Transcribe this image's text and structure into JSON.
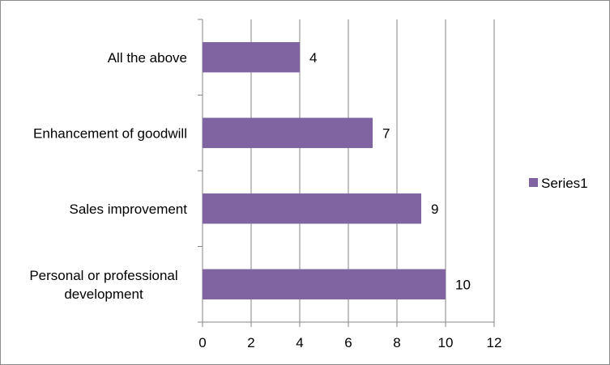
{
  "chart_data": {
    "type": "bar",
    "orientation": "horizontal",
    "categories": [
      "All the above",
      "Enhancement of goodwill",
      "Sales improvement",
      "Personal or professional development"
    ],
    "series": [
      {
        "name": "Series1",
        "values": [
          4,
          7,
          9,
          10
        ],
        "color": "#8064a2"
      }
    ],
    "xlim": [
      0,
      12
    ],
    "xticks": [
      "0",
      "2",
      "4",
      "6",
      "8",
      "10",
      "12"
    ],
    "data_labels": [
      "4",
      "7",
      "9",
      "10"
    ],
    "grid": "vertical",
    "legend": "right"
  }
}
